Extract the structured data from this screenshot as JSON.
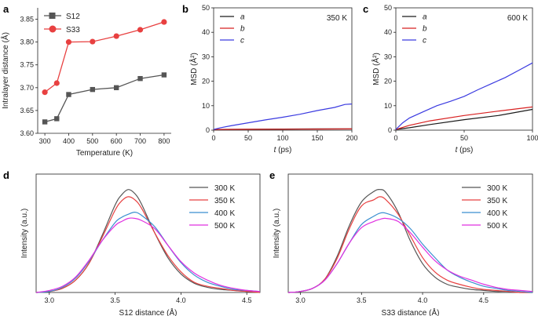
{
  "colors": {
    "gray": "#555555",
    "red": "#e84040",
    "blue": "#3a3ae0",
    "cyan": "#3a8fd0",
    "magenta": "#e030e0",
    "darkred": "#d82020",
    "black": "#1a1a1a"
  },
  "chart_data": [
    {
      "panel": "a",
      "type": "line",
      "xlabel": "Temperature (K)",
      "ylabel": "Intralayer distance (Å)",
      "xlim": [
        270,
        830
      ],
      "ylim": [
        3.6,
        3.875
      ],
      "xticks": [
        "300",
        "400",
        "500",
        "600",
        "700",
        "800"
      ],
      "yticks": [
        "3.60",
        "3.65",
        "3.70",
        "3.75",
        "3.80",
        "3.85"
      ],
      "x": [
        300,
        350,
        400,
        500,
        600,
        700,
        800
      ],
      "series": [
        {
          "name": "S12",
          "values": [
            3.625,
            3.632,
            3.685,
            3.696,
            3.7,
            3.72,
            3.728
          ]
        },
        {
          "name": "S33",
          "values": [
            3.69,
            3.71,
            3.8,
            3.801,
            3.813,
            3.827,
            3.844
          ]
        }
      ]
    },
    {
      "panel": "b",
      "type": "line",
      "annotation": "350 K",
      "xlabel": "(ps)",
      "xlabel_var": "t",
      "ylabel": "MSD (Å²)",
      "xlim": [
        0,
        200
      ],
      "ylim": [
        0,
        50
      ],
      "xticks": [
        "0",
        "50",
        "100",
        "150",
        "200"
      ],
      "yticks": [
        "0",
        "10",
        "20",
        "30",
        "40",
        "50"
      ],
      "series": [
        {
          "name": "a",
          "x": [
            0,
            50,
            100,
            150,
            200
          ],
          "values": [
            0.3,
            0.35,
            0.45,
            0.5,
            0.55
          ]
        },
        {
          "name": "b",
          "x": [
            0,
            50,
            100,
            150,
            200
          ],
          "values": [
            0.3,
            0.35,
            0.4,
            0.45,
            0.5
          ]
        },
        {
          "name": "c",
          "x": [
            0,
            10,
            25,
            50,
            75,
            100,
            125,
            150,
            175,
            190,
            200
          ],
          "values": [
            0.3,
            1.0,
            1.8,
            3.0,
            4.2,
            5.3,
            6.5,
            8.0,
            9.3,
            10.5,
            10.7
          ]
        }
      ]
    },
    {
      "panel": "c",
      "type": "line",
      "annotation": "600 K",
      "xlabel": "(ps)",
      "xlabel_var": "t",
      "ylabel": "MSD (Å²)",
      "xlim": [
        0,
        100
      ],
      "ylim": [
        0,
        50
      ],
      "xticks": [
        "0",
        "50",
        "100"
      ],
      "yticks": [
        "0",
        "10",
        "20",
        "30",
        "40",
        "50"
      ],
      "series": [
        {
          "name": "a",
          "x": [
            0,
            10,
            25,
            50,
            75,
            100
          ],
          "values": [
            0.3,
            1.0,
            2.3,
            4.3,
            6.0,
            8.5
          ]
        },
        {
          "name": "b",
          "x": [
            0,
            10,
            25,
            50,
            75,
            100
          ],
          "values": [
            0.3,
            2.0,
            3.8,
            6.0,
            7.8,
            9.5
          ]
        },
        {
          "name": "c",
          "x": [
            0,
            5,
            10,
            20,
            30,
            40,
            50,
            60,
            70,
            80,
            90,
            100
          ],
          "values": [
            0.3,
            3.0,
            5.0,
            7.5,
            10.0,
            11.8,
            13.8,
            16.5,
            19.0,
            21.5,
            24.5,
            27.5
          ]
        }
      ]
    },
    {
      "panel": "d",
      "type": "line",
      "xlabel": "S12 distance (Å)",
      "ylabel": "Intensity (a.u.)",
      "xlim": [
        2.9,
        4.6
      ],
      "ylim": [
        0,
        1.15
      ],
      "xticks": [
        "3.0",
        "3.5",
        "4.0",
        "4.5"
      ],
      "x": [
        2.9,
        3.0,
        3.1,
        3.2,
        3.3,
        3.4,
        3.5,
        3.55,
        3.6,
        3.65,
        3.7,
        3.8,
        3.9,
        4.0,
        4.1,
        4.2,
        4.3,
        4.4,
        4.5,
        4.6
      ],
      "series": [
        {
          "name": "300 K",
          "values": [
            0,
            0.01,
            0.04,
            0.12,
            0.28,
            0.55,
            0.85,
            0.95,
            1.0,
            0.96,
            0.86,
            0.58,
            0.34,
            0.18,
            0.09,
            0.05,
            0.03,
            0.02,
            0.01,
            0.0
          ]
        },
        {
          "name": "350 K",
          "values": [
            0,
            0.01,
            0.04,
            0.12,
            0.28,
            0.53,
            0.8,
            0.89,
            0.93,
            0.9,
            0.82,
            0.58,
            0.36,
            0.2,
            0.1,
            0.06,
            0.04,
            0.02,
            0.01,
            0.0
          ]
        },
        {
          "name": "400 K",
          "values": [
            0,
            0.01,
            0.05,
            0.14,
            0.3,
            0.5,
            0.68,
            0.73,
            0.76,
            0.78,
            0.75,
            0.64,
            0.46,
            0.29,
            0.17,
            0.1,
            0.06,
            0.03,
            0.02,
            0.01
          ]
        },
        {
          "name": "500 K",
          "values": [
            0,
            0.02,
            0.06,
            0.15,
            0.31,
            0.5,
            0.65,
            0.69,
            0.72,
            0.72,
            0.7,
            0.62,
            0.46,
            0.3,
            0.19,
            0.12,
            0.07,
            0.04,
            0.02,
            0.01
          ]
        }
      ]
    },
    {
      "panel": "e",
      "type": "line",
      "xlabel": "S33 distance (Å)",
      "ylabel": "Intensity (a.u.)",
      "xlim": [
        2.9,
        4.9
      ],
      "ylim": [
        0,
        1.15
      ],
      "xticks": [
        "3.0",
        "3.5",
        "4.0",
        "4.5"
      ],
      "x": [
        2.9,
        3.0,
        3.1,
        3.2,
        3.3,
        3.4,
        3.5,
        3.6,
        3.65,
        3.7,
        3.8,
        3.9,
        4.0,
        4.1,
        4.2,
        4.3,
        4.4,
        4.5,
        4.6,
        4.7,
        4.8,
        4.9
      ],
      "series": [
        {
          "name": "300 K",
          "values": [
            0,
            0.01,
            0.04,
            0.13,
            0.35,
            0.65,
            0.88,
            0.98,
            1.0,
            0.97,
            0.78,
            0.5,
            0.28,
            0.15,
            0.08,
            0.05,
            0.03,
            0.02,
            0.01,
            0.01,
            0.0,
            0.0
          ]
        },
        {
          "name": "350 K",
          "values": [
            0,
            0.01,
            0.04,
            0.13,
            0.33,
            0.62,
            0.84,
            0.9,
            0.93,
            0.9,
            0.76,
            0.55,
            0.34,
            0.2,
            0.12,
            0.08,
            0.05,
            0.03,
            0.02,
            0.01,
            0.0,
            0.0
          ]
        },
        {
          "name": "400 K",
          "values": [
            0,
            0.01,
            0.04,
            0.12,
            0.28,
            0.48,
            0.66,
            0.74,
            0.77,
            0.77,
            0.72,
            0.62,
            0.47,
            0.34,
            0.22,
            0.15,
            0.1,
            0.06,
            0.04,
            0.02,
            0.01,
            0.0
          ]
        },
        {
          "name": "500 K",
          "values": [
            0,
            0.01,
            0.04,
            0.12,
            0.28,
            0.48,
            0.63,
            0.69,
            0.71,
            0.72,
            0.69,
            0.58,
            0.44,
            0.31,
            0.22,
            0.16,
            0.12,
            0.08,
            0.05,
            0.03,
            0.02,
            0.01
          ]
        }
      ]
    }
  ],
  "panel_labels": [
    "a",
    "b",
    "c",
    "d",
    "e"
  ]
}
